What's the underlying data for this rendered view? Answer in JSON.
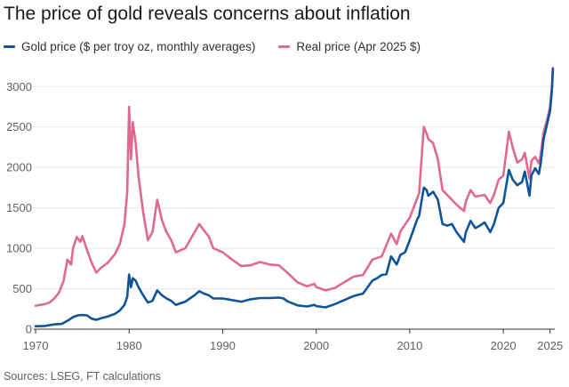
{
  "title": "The price of gold reveals concerns about inflation",
  "source": "Sources: LSEG, FT calculations",
  "colors": {
    "gold": "#0f5499",
    "real": "#e0698f",
    "grid": "#ece8e4",
    "axis": "#33302e"
  },
  "chart_data": {
    "type": "line",
    "title": "The price of gold reveals concerns about inflation",
    "xlabel": "",
    "ylabel": "",
    "xlim": [
      1970,
      2025.5
    ],
    "ylim": [
      0,
      3300
    ],
    "x_ticks": [
      1970,
      1980,
      1990,
      2000,
      2010,
      2020,
      2025
    ],
    "x_tick_labels": [
      "1970",
      "1980",
      "1990",
      "2000",
      "2010",
      "2020",
      "2025"
    ],
    "y_ticks": [
      0,
      500,
      1000,
      1500,
      2000,
      2500,
      3000
    ],
    "y_tick_labels": [
      "0",
      "500",
      "1000",
      "1500",
      "2000",
      "2500",
      "3000"
    ],
    "grid": true,
    "legend_position": "top-left",
    "series": [
      {
        "name": "Gold price ($ per troy oz, monthly averages)",
        "points": [
          [
            1970,
            36
          ],
          [
            1971,
            40
          ],
          [
            1972,
            59
          ],
          [
            1972.8,
            65
          ],
          [
            1973.5,
            110
          ],
          [
            1974,
            150
          ],
          [
            1974.5,
            170
          ],
          [
            1975,
            175
          ],
          [
            1975.5,
            170
          ],
          [
            1976,
            130
          ],
          [
            1976.5,
            115
          ],
          [
            1977,
            135
          ],
          [
            1977.8,
            160
          ],
          [
            1978.5,
            190
          ],
          [
            1979,
            230
          ],
          [
            1979.5,
            300
          ],
          [
            1979.8,
            400
          ],
          [
            1980,
            675
          ],
          [
            1980.2,
            520
          ],
          [
            1980.4,
            630
          ],
          [
            1980.7,
            600
          ],
          [
            1981,
            520
          ],
          [
            1981.5,
            420
          ],
          [
            1982,
            330
          ],
          [
            1982.5,
            350
          ],
          [
            1983,
            480
          ],
          [
            1983.5,
            420
          ],
          [
            1984,
            380
          ],
          [
            1984.5,
            350
          ],
          [
            1985,
            300
          ],
          [
            1985.5,
            320
          ],
          [
            1986,
            340
          ],
          [
            1987,
            420
          ],
          [
            1987.5,
            470
          ],
          [
            1988,
            440
          ],
          [
            1988.5,
            420
          ],
          [
            1989,
            380
          ],
          [
            1990,
            380
          ],
          [
            1991,
            360
          ],
          [
            1992,
            340
          ],
          [
            1993,
            370
          ],
          [
            1994,
            385
          ],
          [
            1995,
            385
          ],
          [
            1996,
            390
          ],
          [
            1996.5,
            380
          ],
          [
            1997,
            340
          ],
          [
            1998,
            295
          ],
          [
            1999,
            280
          ],
          [
            1999.8,
            300
          ],
          [
            2000,
            285
          ],
          [
            2001,
            270
          ],
          [
            2002,
            310
          ],
          [
            2003,
            360
          ],
          [
            2004,
            410
          ],
          [
            2005,
            440
          ],
          [
            2006,
            600
          ],
          [
            2006.5,
            630
          ],
          [
            2007,
            670
          ],
          [
            2007.5,
            680
          ],
          [
            2008,
            900
          ],
          [
            2008.6,
            800
          ],
          [
            2009,
            920
          ],
          [
            2009.5,
            950
          ],
          [
            2010,
            1100
          ],
          [
            2010.8,
            1360
          ],
          [
            2011,
            1400
          ],
          [
            2011.5,
            1750
          ],
          [
            2011.8,
            1720
          ],
          [
            2012,
            1650
          ],
          [
            2012.5,
            1700
          ],
          [
            2013,
            1600
          ],
          [
            2013.5,
            1300
          ],
          [
            2014,
            1280
          ],
          [
            2014.5,
            1300
          ],
          [
            2015,
            1200
          ],
          [
            2015.8,
            1080
          ],
          [
            2016,
            1200
          ],
          [
            2016.5,
            1340
          ],
          [
            2017,
            1250
          ],
          [
            2017.5,
            1280
          ],
          [
            2018,
            1320
          ],
          [
            2018.6,
            1200
          ],
          [
            2019,
            1300
          ],
          [
            2019.5,
            1500
          ],
          [
            2020,
            1560
          ],
          [
            2020.6,
            1970
          ],
          [
            2021,
            1850
          ],
          [
            2021.5,
            1780
          ],
          [
            2022,
            1820
          ],
          [
            2022.3,
            1950
          ],
          [
            2022.8,
            1650
          ],
          [
            2023,
            1900
          ],
          [
            2023.4,
            1990
          ],
          [
            2023.8,
            1920
          ],
          [
            2024,
            2050
          ],
          [
            2024.3,
            2350
          ],
          [
            2024.7,
            2550
          ],
          [
            2024.9,
            2650
          ],
          [
            2025,
            2700
          ],
          [
            2025.2,
            2950
          ],
          [
            2025.3,
            3220
          ]
        ]
      },
      {
        "name": "Real price (Apr 2025 $)",
        "points": [
          [
            1970,
            290
          ],
          [
            1971,
            310
          ],
          [
            1971.5,
            330
          ],
          [
            1972,
            380
          ],
          [
            1972.5,
            450
          ],
          [
            1973,
            600
          ],
          [
            1973.4,
            860
          ],
          [
            1973.8,
            800
          ],
          [
            1974,
            1000
          ],
          [
            1974.4,
            1140
          ],
          [
            1974.8,
            1080
          ],
          [
            1975,
            1150
          ],
          [
            1975.5,
            980
          ],
          [
            1976,
            820
          ],
          [
            1976.5,
            700
          ],
          [
            1977,
            760
          ],
          [
            1977.7,
            820
          ],
          [
            1978.5,
            930
          ],
          [
            1979,
            1050
          ],
          [
            1979.5,
            1300
          ],
          [
            1979.8,
            1700
          ],
          [
            1980,
            2750
          ],
          [
            1980.2,
            2100
          ],
          [
            1980.4,
            2560
          ],
          [
            1980.7,
            2300
          ],
          [
            1981,
            1900
          ],
          [
            1981.5,
            1450
          ],
          [
            1982,
            1100
          ],
          [
            1982.5,
            1200
          ],
          [
            1983,
            1600
          ],
          [
            1983.5,
            1350
          ],
          [
            1984,
            1200
          ],
          [
            1984.5,
            1100
          ],
          [
            1985,
            950
          ],
          [
            1986,
            1000
          ],
          [
            1987,
            1200
          ],
          [
            1987.5,
            1300
          ],
          [
            1988,
            1220
          ],
          [
            1988.5,
            1150
          ],
          [
            1989,
            1000
          ],
          [
            1990,
            950
          ],
          [
            1991,
            860
          ],
          [
            1992,
            780
          ],
          [
            1993,
            790
          ],
          [
            1994,
            830
          ],
          [
            1995,
            800
          ],
          [
            1996,
            790
          ],
          [
            1997,
            690
          ],
          [
            1998,
            580
          ],
          [
            1999,
            530
          ],
          [
            1999.8,
            560
          ],
          [
            2000,
            520
          ],
          [
            2001,
            480
          ],
          [
            2002,
            510
          ],
          [
            2003,
            580
          ],
          [
            2004,
            650
          ],
          [
            2005,
            670
          ],
          [
            2006,
            860
          ],
          [
            2007,
            900
          ],
          [
            2008,
            1180
          ],
          [
            2008.6,
            1050
          ],
          [
            2009,
            1210
          ],
          [
            2010,
            1380
          ],
          [
            2011,
            1680
          ],
          [
            2011.5,
            2500
          ],
          [
            2011.8,
            2420
          ],
          [
            2012,
            2350
          ],
          [
            2012.5,
            2300
          ],
          [
            2013,
            2100
          ],
          [
            2013.5,
            1720
          ],
          [
            2014,
            1660
          ],
          [
            2015,
            1540
          ],
          [
            2015.8,
            1460
          ],
          [
            2016,
            1580
          ],
          [
            2016.5,
            1720
          ],
          [
            2017,
            1640
          ],
          [
            2018,
            1660
          ],
          [
            2018.6,
            1560
          ],
          [
            2019,
            1660
          ],
          [
            2019.5,
            1850
          ],
          [
            2020,
            1900
          ],
          [
            2020.6,
            2440
          ],
          [
            2021,
            2250
          ],
          [
            2021.5,
            2060
          ],
          [
            2022,
            2100
          ],
          [
            2022.3,
            2180
          ],
          [
            2022.8,
            1860
          ],
          [
            2023,
            2080
          ],
          [
            2023.4,
            2130
          ],
          [
            2023.8,
            2050
          ],
          [
            2024,
            2160
          ],
          [
            2024.3,
            2430
          ],
          [
            2024.7,
            2600
          ],
          [
            2025,
            2750
          ],
          [
            2025.2,
            3000
          ],
          [
            2025.3,
            3230
          ]
        ]
      }
    ]
  }
}
